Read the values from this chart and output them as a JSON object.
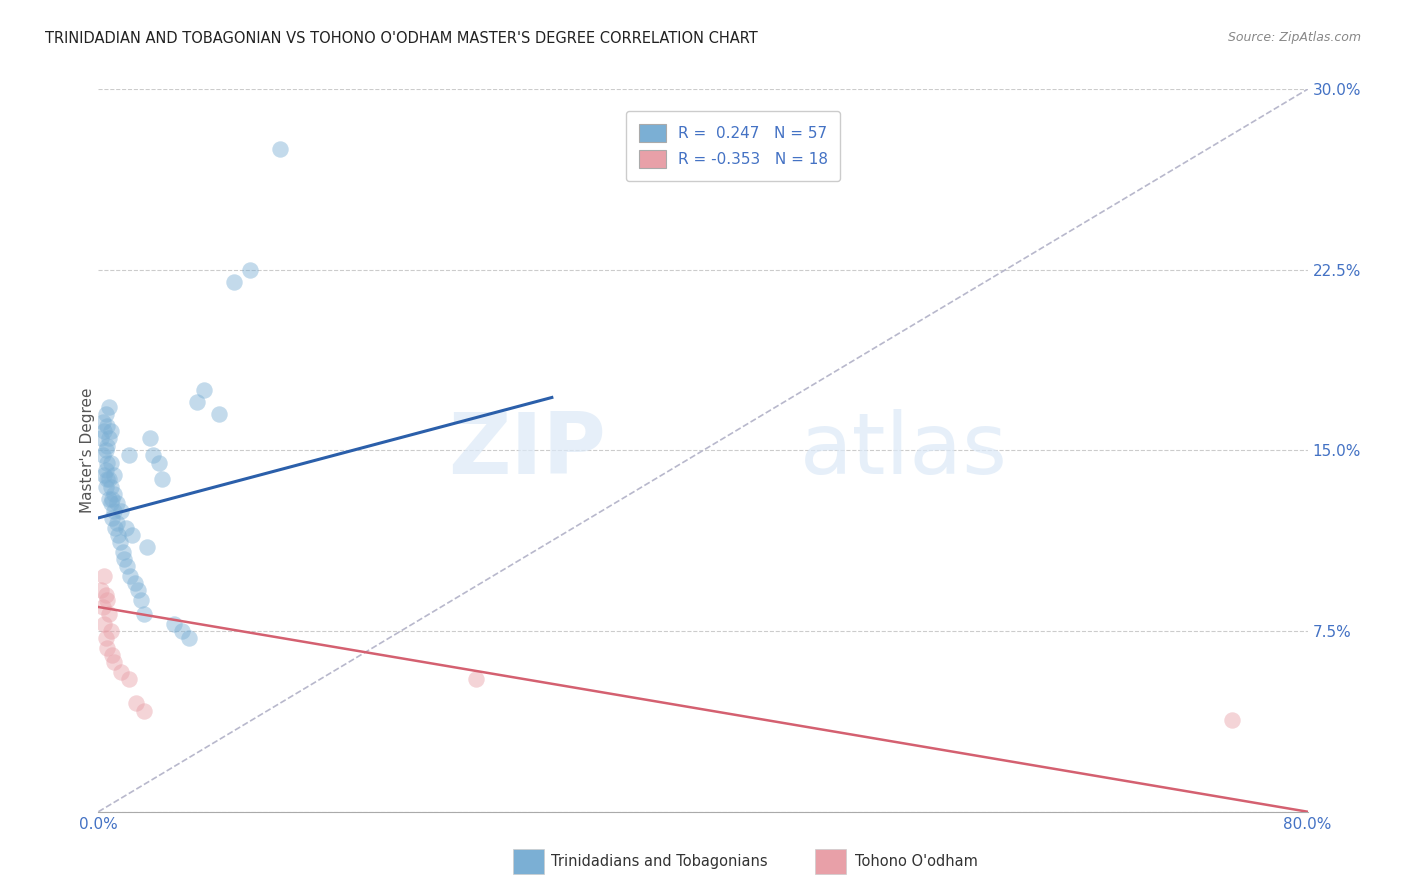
{
  "title": "TRINIDADIAN AND TOBAGONIAN VS TOHONO O'ODHAM MASTER'S DEGREE CORRELATION CHART",
  "source": "Source: ZipAtlas.com",
  "ylabel": "Master's Degree",
  "xlim": [
    0,
    0.8
  ],
  "ylim": [
    0,
    0.3
  ],
  "xtick_pos": [
    0.0,
    0.8
  ],
  "xtick_labels": [
    "0.0%",
    "80.0%"
  ],
  "ytick_pos": [
    0.075,
    0.15,
    0.225,
    0.3
  ],
  "ytick_labels": [
    "7.5%",
    "15.0%",
    "22.5%",
    "30.0%"
  ],
  "grid_yticks": [
    0.0,
    0.075,
    0.15,
    0.225,
    0.3
  ],
  "blue_color": "#7bafd4",
  "pink_color": "#e8a0a8",
  "trendline_blue": "#2b5faa",
  "trendline_pink": "#d46070",
  "refline_color": "#b8b8cc",
  "watermark_zip": "ZIP",
  "watermark_atlas": "atlas",
  "blue_scatter_x": [
    0.002,
    0.003,
    0.003,
    0.004,
    0.004,
    0.005,
    0.005,
    0.005,
    0.005,
    0.006,
    0.006,
    0.006,
    0.006,
    0.007,
    0.007,
    0.007,
    0.007,
    0.008,
    0.008,
    0.008,
    0.008,
    0.009,
    0.009,
    0.01,
    0.01,
    0.01,
    0.011,
    0.012,
    0.012,
    0.013,
    0.014,
    0.015,
    0.016,
    0.017,
    0.018,
    0.019,
    0.02,
    0.021,
    0.022,
    0.024,
    0.026,
    0.028,
    0.03,
    0.032,
    0.034,
    0.036,
    0.04,
    0.042,
    0.05,
    0.055,
    0.06,
    0.065,
    0.07,
    0.08,
    0.09,
    0.1,
    0.12
  ],
  "blue_scatter_y": [
    0.155,
    0.148,
    0.162,
    0.14,
    0.158,
    0.135,
    0.142,
    0.15,
    0.165,
    0.138,
    0.145,
    0.152,
    0.16,
    0.13,
    0.138,
    0.155,
    0.168,
    0.128,
    0.135,
    0.145,
    0.158,
    0.122,
    0.13,
    0.125,
    0.132,
    0.14,
    0.118,
    0.12,
    0.128,
    0.115,
    0.112,
    0.125,
    0.108,
    0.105,
    0.118,
    0.102,
    0.148,
    0.098,
    0.115,
    0.095,
    0.092,
    0.088,
    0.082,
    0.11,
    0.155,
    0.148,
    0.145,
    0.138,
    0.078,
    0.075,
    0.072,
    0.17,
    0.175,
    0.165,
    0.22,
    0.225,
    0.275
  ],
  "pink_scatter_x": [
    0.002,
    0.003,
    0.004,
    0.004,
    0.005,
    0.005,
    0.006,
    0.006,
    0.007,
    0.008,
    0.009,
    0.01,
    0.015,
    0.02,
    0.025,
    0.03,
    0.25,
    0.75
  ],
  "pink_scatter_y": [
    0.092,
    0.085,
    0.098,
    0.078,
    0.09,
    0.072,
    0.088,
    0.068,
    0.082,
    0.075,
    0.065,
    0.062,
    0.058,
    0.055,
    0.045,
    0.042,
    0.055,
    0.038
  ],
  "blue_trend_x": [
    0.0,
    0.3
  ],
  "blue_trend_y": [
    0.122,
    0.172
  ],
  "pink_trend_x": [
    0.0,
    0.8
  ],
  "pink_trend_y": [
    0.085,
    0.0
  ],
  "ref_line_x": [
    0.0,
    0.8
  ],
  "ref_line_y": [
    0.0,
    0.3
  ]
}
